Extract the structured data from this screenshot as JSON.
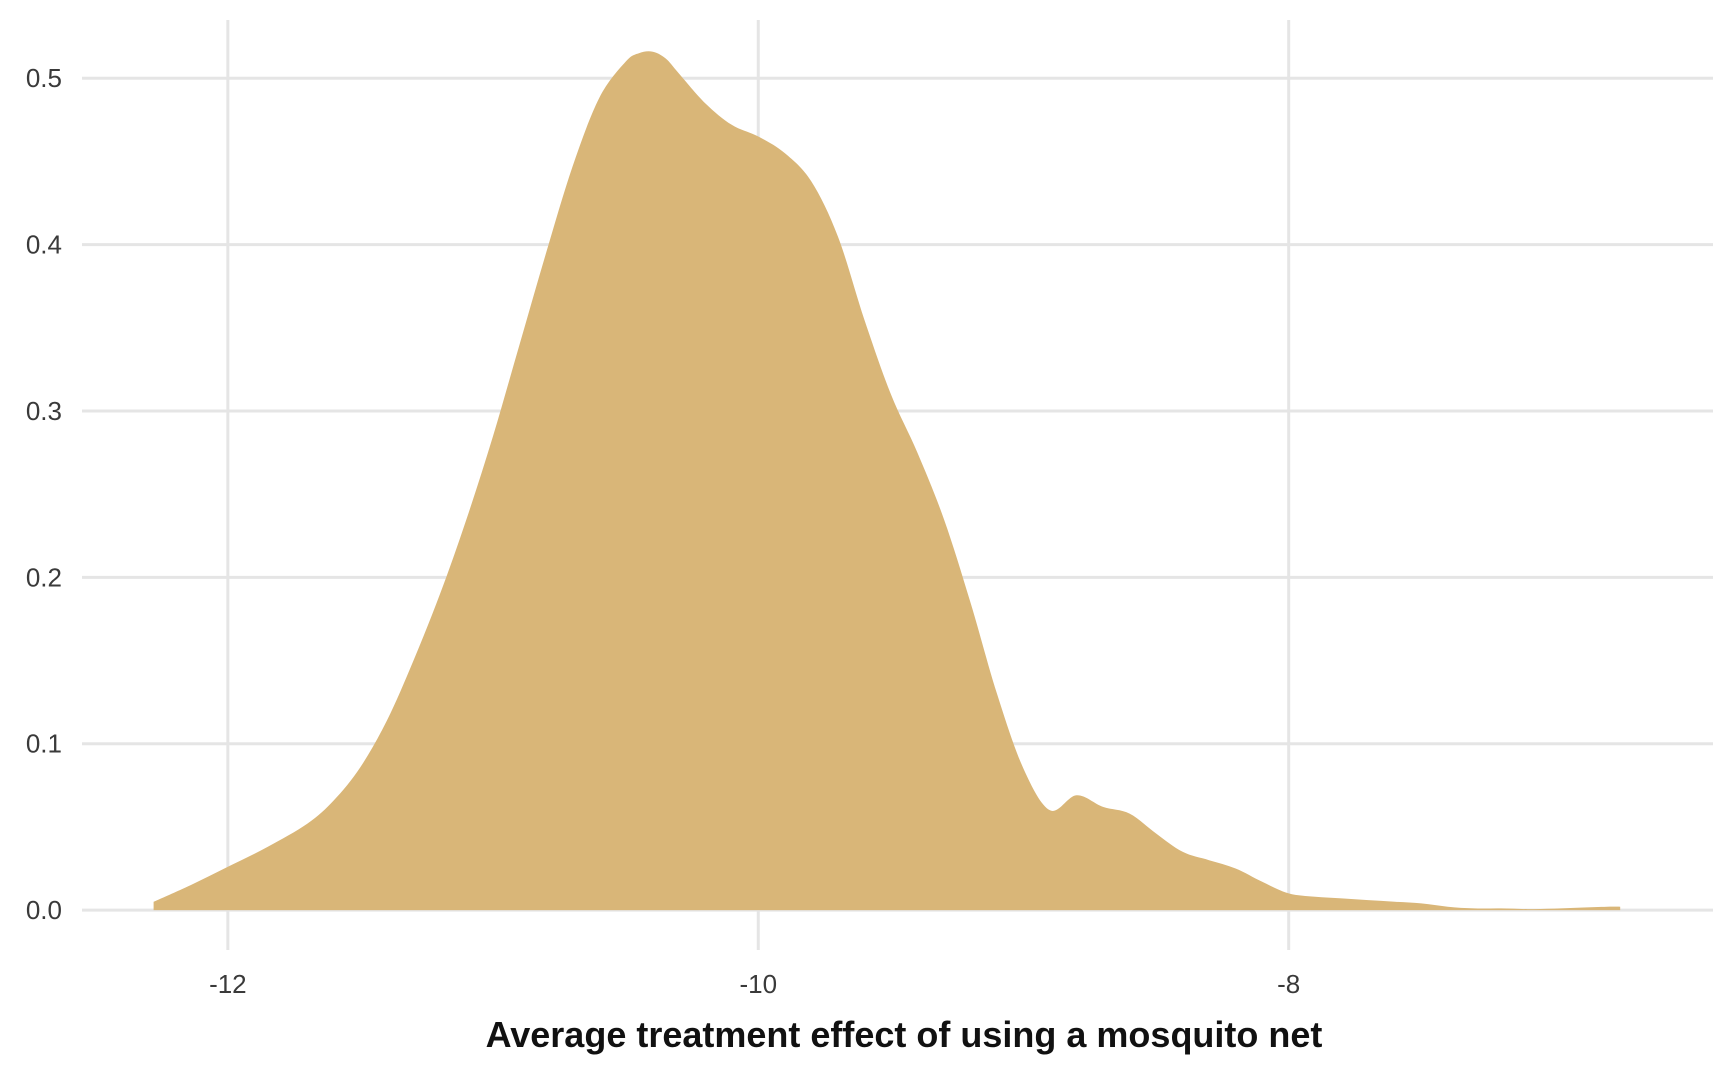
{
  "chart_data": {
    "type": "area",
    "title": "",
    "xlabel": "Average treatment effect of using a mosquito net",
    "ylabel": "",
    "xlim": [
      -12.55,
      -6.4
    ],
    "ylim": [
      -0.024,
      0.535
    ],
    "x_ticks": [
      -12,
      -10,
      -8
    ],
    "x_tick_labels": [
      "-12",
      "-10",
      "-8"
    ],
    "y_ticks": [
      0.0,
      0.1,
      0.2,
      0.3,
      0.4,
      0.5
    ],
    "y_tick_labels": [
      "0.0",
      "0.1",
      "0.2",
      "0.3",
      "0.4",
      "0.5"
    ],
    "grid": true,
    "legend": "none",
    "fill_color": "#d9b678",
    "series": [
      {
        "x": [
          -12.28,
          -12.14,
          -12.0,
          -11.85,
          -11.7,
          -11.6,
          -11.5,
          -11.4,
          -11.3,
          -11.2,
          -11.1,
          -11.0,
          -10.9,
          -10.8,
          -10.7,
          -10.6,
          -10.5,
          -10.45,
          -10.4,
          -10.35,
          -10.3,
          -10.2,
          -10.1,
          -10.0,
          -9.9,
          -9.8,
          -9.7,
          -9.6,
          -9.5,
          -9.4,
          -9.3,
          -9.2,
          -9.1,
          -9.0,
          -8.9,
          -8.8,
          -8.7,
          -8.6,
          -8.5,
          -8.4,
          -8.3,
          -8.2,
          -8.1,
          -8.0,
          -7.9,
          -7.8,
          -7.7,
          -7.6,
          -7.5,
          -7.4,
          -7.3,
          -7.2,
          -7.1,
          -7.0,
          -6.9,
          -6.8,
          -6.75
        ],
        "y": [
          0.005,
          0.015,
          0.026,
          0.038,
          0.052,
          0.066,
          0.086,
          0.114,
          0.15,
          0.19,
          0.235,
          0.285,
          0.34,
          0.395,
          0.447,
          0.488,
          0.51,
          0.515,
          0.516,
          0.512,
          0.503,
          0.485,
          0.472,
          0.465,
          0.455,
          0.438,
          0.405,
          0.355,
          0.31,
          0.275,
          0.235,
          0.185,
          0.13,
          0.085,
          0.06,
          0.069,
          0.062,
          0.058,
          0.046,
          0.035,
          0.03,
          0.025,
          0.017,
          0.01,
          0.008,
          0.007,
          0.006,
          0.005,
          0.004,
          0.002,
          0.001,
          0.001,
          0.0006,
          0.0009,
          0.0015,
          0.002,
          0.002
        ]
      }
    ]
  }
}
